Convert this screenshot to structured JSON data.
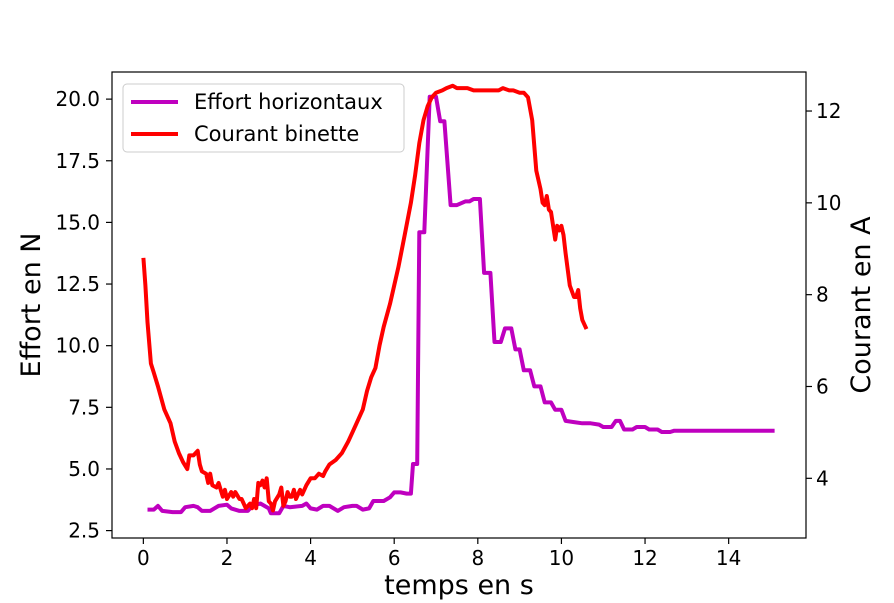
{
  "chart_data": {
    "type": "line",
    "xlabel": "temps en s",
    "ylabel_left": "Effort en N",
    "ylabel_right": "Courant en A",
    "xlim": [
      -0.75,
      15.85
    ],
    "ylim_left": [
      2.2,
      21.1
    ],
    "ylim_right": [
      2.7,
      12.85
    ],
    "x_ticks": [
      0,
      2,
      4,
      6,
      8,
      10,
      12,
      14
    ],
    "x_tick_labels": [
      "0",
      "2",
      "4",
      "6",
      "8",
      "10",
      "12",
      "14"
    ],
    "y_left_ticks": [
      2.5,
      5.0,
      7.5,
      10.0,
      12.5,
      15.0,
      17.5,
      20.0
    ],
    "y_left_tick_labels": [
      "2.5",
      "5.0",
      "7.5",
      "10.0",
      "12.5",
      "15.0",
      "17.5",
      "20.0"
    ],
    "y_right_ticks": [
      4,
      6,
      8,
      10,
      12
    ],
    "y_right_tick_labels": [
      "4",
      "6",
      "8",
      "10",
      "12"
    ],
    "legend_position": "top-left",
    "series": [
      {
        "name": "Effort horizontaux",
        "axis": "left",
        "color": "#bf00bf",
        "points": [
          [
            0.1,
            3.35
          ],
          [
            0.25,
            3.35
          ],
          [
            0.35,
            3.5
          ],
          [
            0.45,
            3.3
          ],
          [
            0.7,
            3.25
          ],
          [
            0.9,
            3.25
          ],
          [
            1.0,
            3.45
          ],
          [
            1.2,
            3.5
          ],
          [
            1.3,
            3.45
          ],
          [
            1.4,
            3.3
          ],
          [
            1.6,
            3.3
          ],
          [
            1.8,
            3.5
          ],
          [
            2.0,
            3.55
          ],
          [
            2.1,
            3.4
          ],
          [
            2.3,
            3.3
          ],
          [
            2.5,
            3.3
          ],
          [
            2.6,
            3.5
          ],
          [
            2.8,
            3.6
          ],
          [
            3.0,
            3.4
          ],
          [
            3.05,
            3.2
          ],
          [
            3.25,
            3.2
          ],
          [
            3.35,
            3.5
          ],
          [
            3.5,
            3.45
          ],
          [
            3.8,
            3.5
          ],
          [
            3.9,
            3.6
          ],
          [
            4.0,
            3.4
          ],
          [
            4.15,
            3.35
          ],
          [
            4.3,
            3.5
          ],
          [
            4.45,
            3.5
          ],
          [
            4.65,
            3.3
          ],
          [
            4.8,
            3.45
          ],
          [
            5.0,
            3.5
          ],
          [
            5.1,
            3.5
          ],
          [
            5.25,
            3.35
          ],
          [
            5.4,
            3.4
          ],
          [
            5.5,
            3.7
          ],
          [
            5.75,
            3.7
          ],
          [
            5.9,
            3.85
          ],
          [
            6.0,
            4.05
          ],
          [
            6.15,
            4.05
          ],
          [
            6.3,
            4.0
          ],
          [
            6.4,
            4.0
          ],
          [
            6.45,
            5.2
          ],
          [
            6.55,
            5.2
          ],
          [
            6.6,
            14.6
          ],
          [
            6.72,
            14.6
          ],
          [
            6.85,
            20.1
          ],
          [
            7.0,
            20.1
          ],
          [
            7.1,
            19.1
          ],
          [
            7.2,
            19.1
          ],
          [
            7.35,
            15.7
          ],
          [
            7.5,
            15.7
          ],
          [
            7.7,
            15.85
          ],
          [
            7.8,
            15.85
          ],
          [
            7.9,
            15.95
          ],
          [
            8.05,
            15.95
          ],
          [
            8.15,
            12.95
          ],
          [
            8.3,
            12.95
          ],
          [
            8.4,
            10.15
          ],
          [
            8.55,
            10.15
          ],
          [
            8.65,
            10.7
          ],
          [
            8.8,
            10.7
          ],
          [
            8.9,
            9.85
          ],
          [
            9.0,
            9.85
          ],
          [
            9.1,
            9.0
          ],
          [
            9.25,
            9.0
          ],
          [
            9.35,
            8.35
          ],
          [
            9.5,
            8.35
          ],
          [
            9.6,
            7.7
          ],
          [
            9.75,
            7.7
          ],
          [
            9.85,
            7.4
          ],
          [
            10.0,
            7.4
          ],
          [
            10.1,
            6.95
          ],
          [
            10.3,
            6.9
          ],
          [
            10.5,
            6.85
          ],
          [
            10.7,
            6.85
          ],
          [
            10.9,
            6.8
          ],
          [
            11.0,
            6.7
          ],
          [
            11.2,
            6.7
          ],
          [
            11.3,
            6.95
          ],
          [
            11.4,
            6.95
          ],
          [
            11.5,
            6.6
          ],
          [
            11.7,
            6.6
          ],
          [
            11.8,
            6.7
          ],
          [
            12.0,
            6.7
          ],
          [
            12.1,
            6.6
          ],
          [
            12.3,
            6.6
          ],
          [
            12.4,
            6.5
          ],
          [
            12.6,
            6.5
          ],
          [
            12.7,
            6.55
          ],
          [
            13.2,
            6.55
          ],
          [
            13.8,
            6.55
          ],
          [
            14.5,
            6.55
          ],
          [
            15.1,
            6.55
          ]
        ]
      },
      {
        "name": "Courant binette",
        "axis": "right",
        "color": "#ff0000",
        "points": [
          [
            0.0,
            8.8
          ],
          [
            0.05,
            8.2
          ],
          [
            0.1,
            7.4
          ],
          [
            0.18,
            6.5
          ],
          [
            0.25,
            6.3
          ],
          [
            0.35,
            6.0
          ],
          [
            0.5,
            5.5
          ],
          [
            0.65,
            5.2
          ],
          [
            0.75,
            4.8
          ],
          [
            0.85,
            4.55
          ],
          [
            0.95,
            4.35
          ],
          [
            1.05,
            4.2
          ],
          [
            1.1,
            4.5
          ],
          [
            1.2,
            4.5
          ],
          [
            1.3,
            4.6
          ],
          [
            1.35,
            4.3
          ],
          [
            1.4,
            4.15
          ],
          [
            1.5,
            4.1
          ],
          [
            1.55,
            3.9
          ],
          [
            1.6,
            4.1
          ],
          [
            1.65,
            3.85
          ],
          [
            1.75,
            3.8
          ],
          [
            1.8,
            3.9
          ],
          [
            1.85,
            3.75
          ],
          [
            1.9,
            3.6
          ],
          [
            1.95,
            3.75
          ],
          [
            2.0,
            3.55
          ],
          [
            2.1,
            3.7
          ],
          [
            2.15,
            3.6
          ],
          [
            2.2,
            3.7
          ],
          [
            2.3,
            3.55
          ],
          [
            2.35,
            3.55
          ],
          [
            2.45,
            3.35
          ],
          [
            2.55,
            3.45
          ],
          [
            2.6,
            3.35
          ],
          [
            2.65,
            3.55
          ],
          [
            2.7,
            3.35
          ],
          [
            2.75,
            3.9
          ],
          [
            2.8,
            3.85
          ],
          [
            2.85,
            3.95
          ],
          [
            2.9,
            3.8
          ],
          [
            2.95,
            4.0
          ],
          [
            3.0,
            3.5
          ],
          [
            3.05,
            3.45
          ],
          [
            3.1,
            3.3
          ],
          [
            3.15,
            3.5
          ],
          [
            3.25,
            3.65
          ],
          [
            3.3,
            3.8
          ],
          [
            3.35,
            3.4
          ],
          [
            3.4,
            3.5
          ],
          [
            3.45,
            3.7
          ],
          [
            3.5,
            3.6
          ],
          [
            3.55,
            3.6
          ],
          [
            3.6,
            3.75
          ],
          [
            3.65,
            3.55
          ],
          [
            3.7,
            3.65
          ],
          [
            3.75,
            3.75
          ],
          [
            3.8,
            3.65
          ],
          [
            3.9,
            3.85
          ],
          [
            4.0,
            4.0
          ],
          [
            4.1,
            4.0
          ],
          [
            4.2,
            4.1
          ],
          [
            4.3,
            4.05
          ],
          [
            4.35,
            4.15
          ],
          [
            4.45,
            4.3
          ],
          [
            4.6,
            4.4
          ],
          [
            4.75,
            4.55
          ],
          [
            4.9,
            4.8
          ],
          [
            5.0,
            5.0
          ],
          [
            5.1,
            5.2
          ],
          [
            5.25,
            5.5
          ],
          [
            5.35,
            5.9
          ],
          [
            5.45,
            6.2
          ],
          [
            5.55,
            6.4
          ],
          [
            5.65,
            6.9
          ],
          [
            5.75,
            7.3
          ],
          [
            5.9,
            7.8
          ],
          [
            6.0,
            8.2
          ],
          [
            6.1,
            8.6
          ],
          [
            6.25,
            9.3
          ],
          [
            6.4,
            10.0
          ],
          [
            6.5,
            10.6
          ],
          [
            6.6,
            11.3
          ],
          [
            6.7,
            11.8
          ],
          [
            6.8,
            12.1
          ],
          [
            6.9,
            12.3
          ],
          [
            7.0,
            12.4
          ],
          [
            7.15,
            12.45
          ],
          [
            7.25,
            12.5
          ],
          [
            7.4,
            12.55
          ],
          [
            7.5,
            12.5
          ],
          [
            7.6,
            12.5
          ],
          [
            7.75,
            12.5
          ],
          [
            7.9,
            12.45
          ],
          [
            8.0,
            12.45
          ],
          [
            8.1,
            12.45
          ],
          [
            8.25,
            12.45
          ],
          [
            8.4,
            12.45
          ],
          [
            8.5,
            12.45
          ],
          [
            8.6,
            12.5
          ],
          [
            8.75,
            12.45
          ],
          [
            8.85,
            12.45
          ],
          [
            9.0,
            12.4
          ],
          [
            9.1,
            12.4
          ],
          [
            9.2,
            12.3
          ],
          [
            9.3,
            11.8
          ],
          [
            9.4,
            10.7
          ],
          [
            9.5,
            10.3
          ],
          [
            9.55,
            10.0
          ],
          [
            9.6,
            9.95
          ],
          [
            9.65,
            10.15
          ],
          [
            9.7,
            9.85
          ],
          [
            9.75,
            9.8
          ],
          [
            9.8,
            9.5
          ],
          [
            9.85,
            9.2
          ],
          [
            9.9,
            9.5
          ],
          [
            9.95,
            9.4
          ],
          [
            10.0,
            9.5
          ],
          [
            10.05,
            9.3
          ],
          [
            10.1,
            8.9
          ],
          [
            10.2,
            8.2
          ],
          [
            10.3,
            7.95
          ],
          [
            10.35,
            7.95
          ],
          [
            10.4,
            8.1
          ],
          [
            10.45,
            7.7
          ],
          [
            10.5,
            7.45
          ],
          [
            10.6,
            7.25
          ]
        ]
      }
    ]
  }
}
